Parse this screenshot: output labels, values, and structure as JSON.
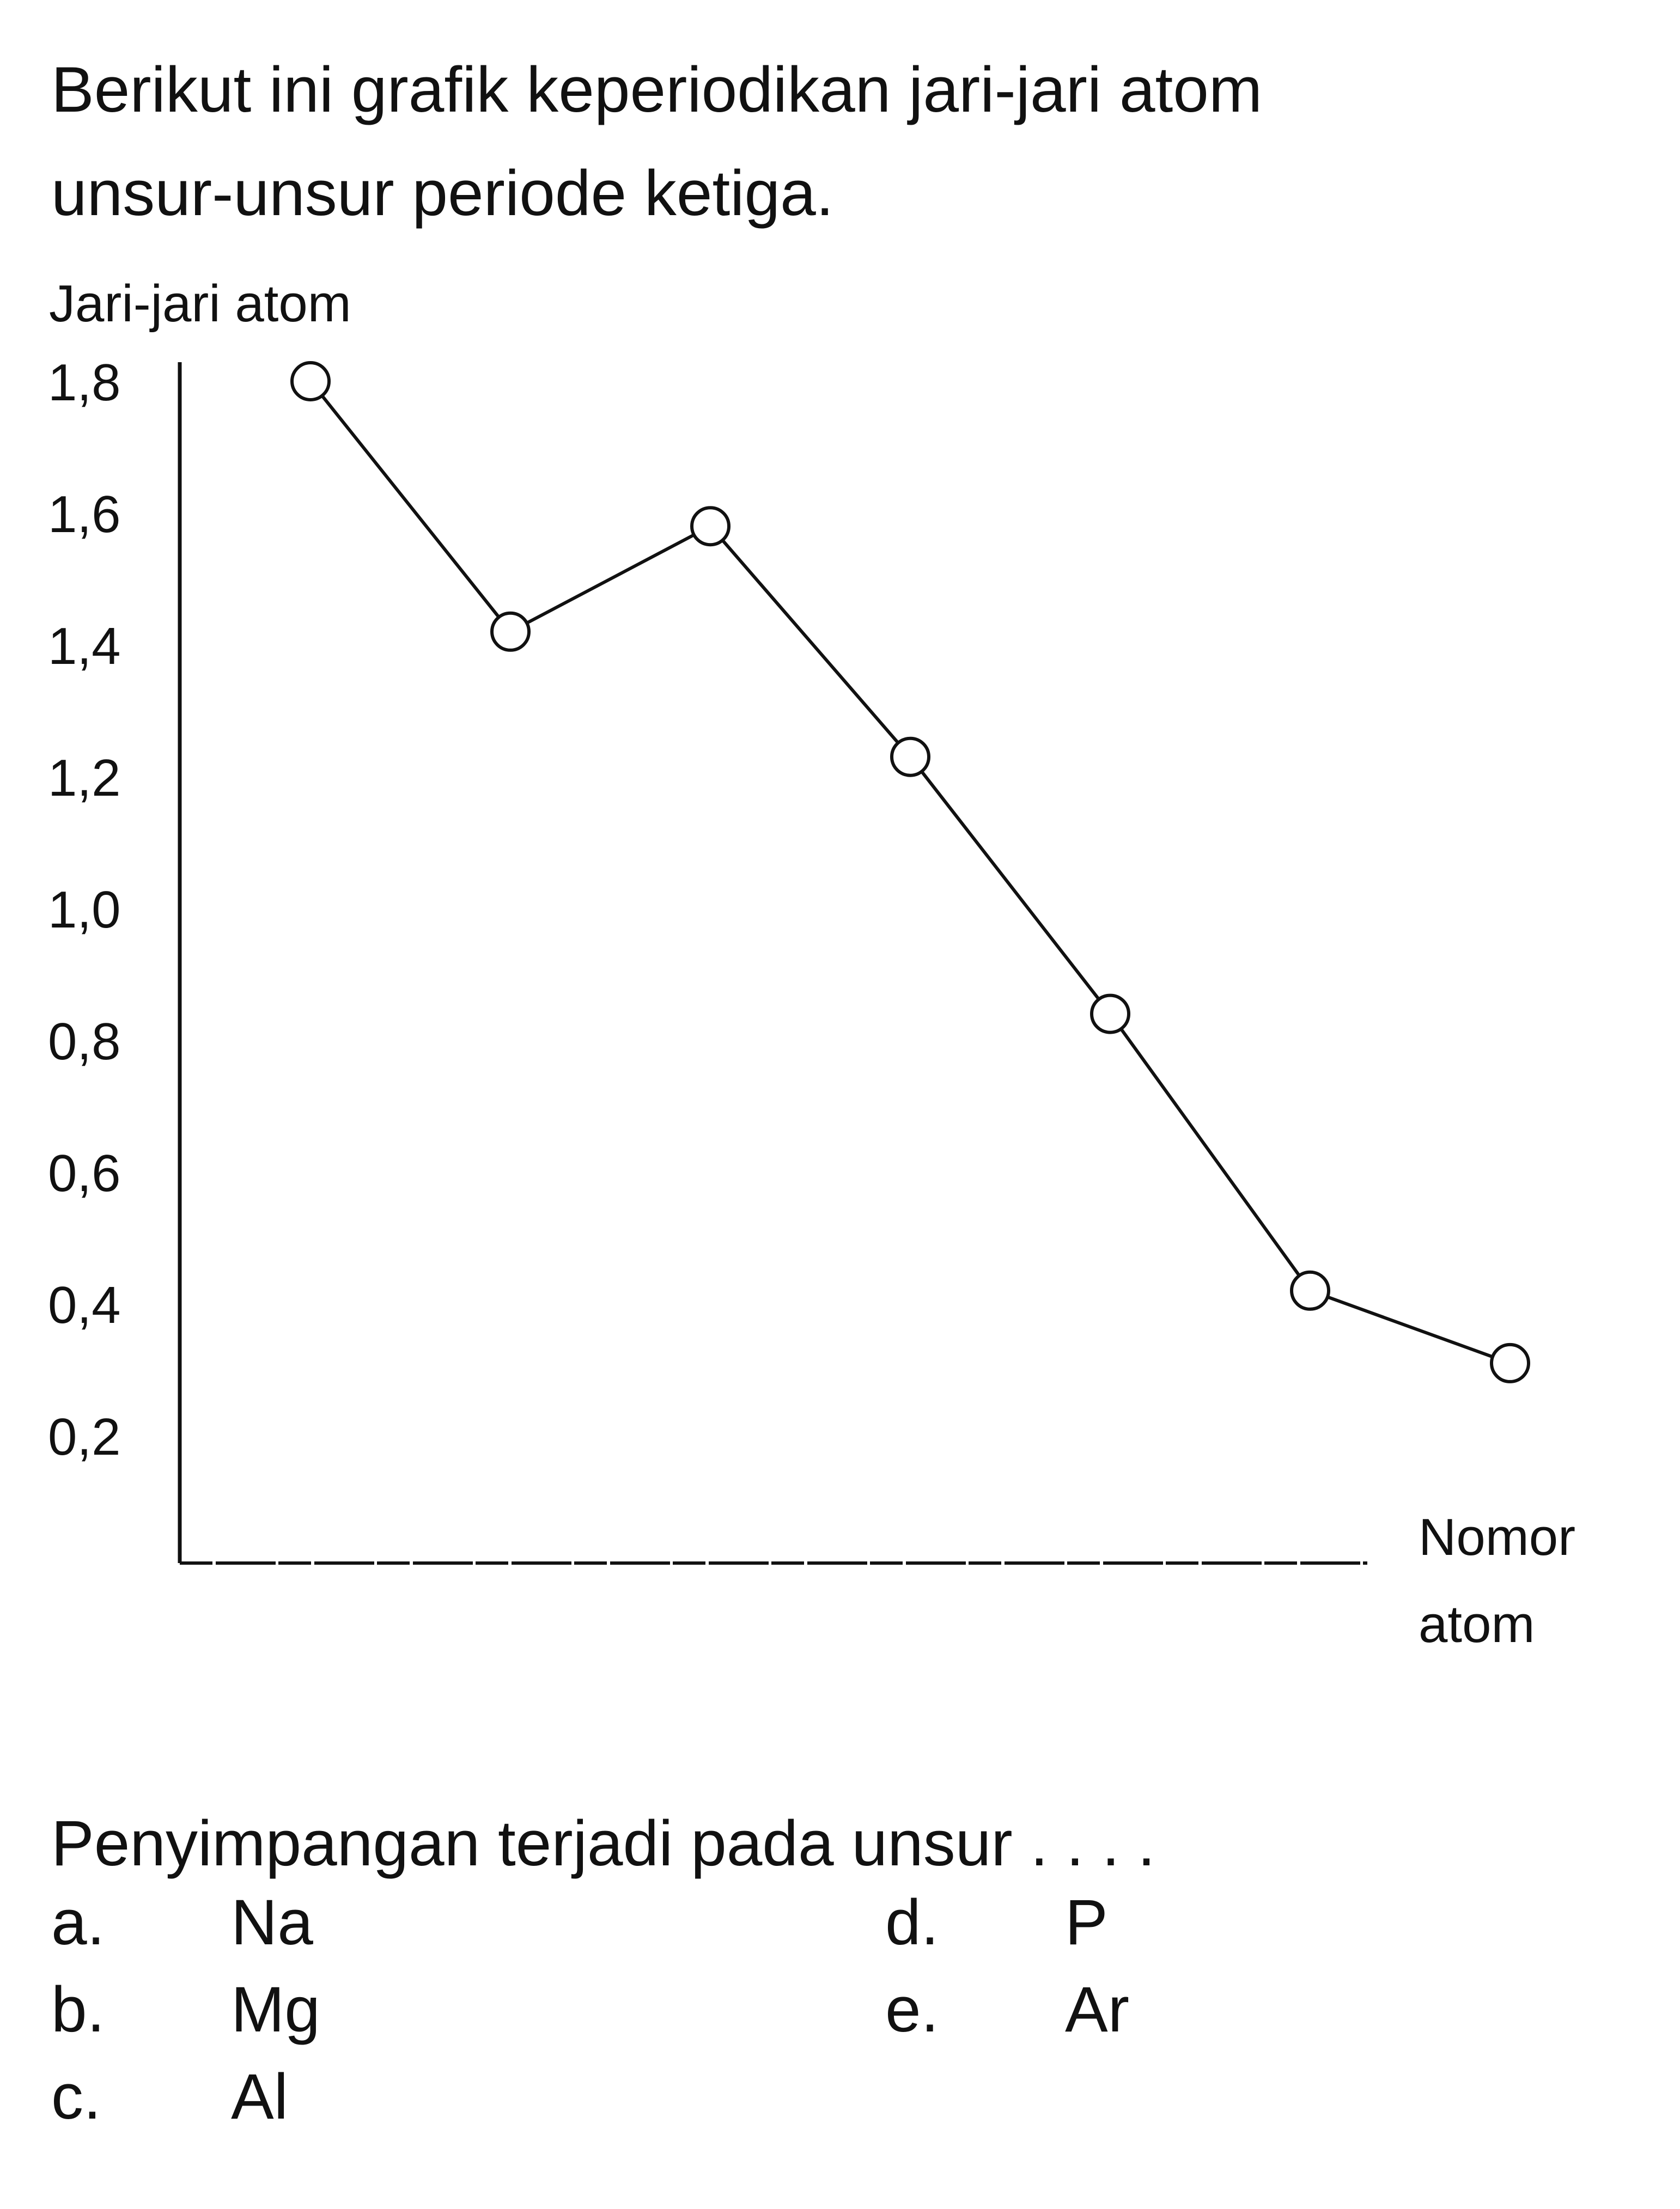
{
  "question": {
    "line1": "Berikut ini grafik keperiodikan jari-jari atom",
    "line2": "unsur-unsur periode ketiga."
  },
  "chart_data": {
    "type": "line",
    "ylabel": "Jari-jari atom",
    "xlabel_line1": "Nomor",
    "xlabel_line2": "atom",
    "y_ticks": [
      "1,8",
      "1,6",
      "1,4",
      "1,2",
      "1,0",
      "0,8",
      "0,6",
      "0,4",
      "0,2"
    ],
    "ylim": [
      0,
      1.8
    ],
    "series": [
      {
        "values": [
          1.8,
          1.42,
          1.58,
          1.23,
          0.84,
          0.42,
          0.31
        ]
      }
    ],
    "marker": "open-circle",
    "grid": false
  },
  "prompt": "Penyimpangan terjadi pada unsur . . . .",
  "options": [
    {
      "letter": "a.",
      "text": "Na"
    },
    {
      "letter": "b.",
      "text": "Mg"
    },
    {
      "letter": "c.",
      "text": "Al"
    },
    {
      "letter": "d.",
      "text": "P"
    },
    {
      "letter": "e.",
      "text": "Ar"
    }
  ],
  "colors": {
    "ink": "#111111",
    "background": "#ffffff"
  }
}
